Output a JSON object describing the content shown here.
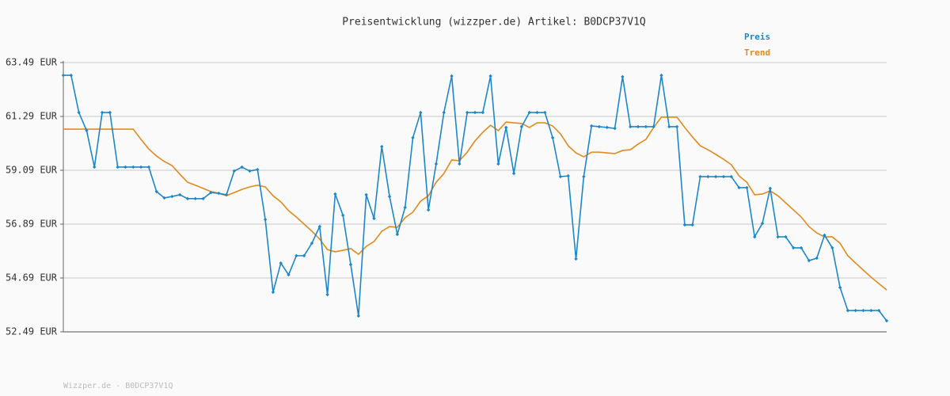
{
  "chart_data": {
    "type": "line",
    "title": "Preisentwicklung (wizzper.de) Artikel: B0DCP37V1Q",
    "watermark": "Wizzper.de - B0DCP37V1Q",
    "legend": "top-right",
    "grid": true,
    "ylim": [
      52.49,
      63.49
    ],
    "yticks": [
      {
        "value": 52.49,
        "label": "52.49 EUR"
      },
      {
        "value": 54.69,
        "label": "54.69 EUR"
      },
      {
        "value": 56.89,
        "label": "56.89 EUR"
      },
      {
        "value": 59.09,
        "label": "59.09 EUR"
      },
      {
        "value": 61.29,
        "label": "61.29 EUR"
      },
      {
        "value": 63.49,
        "label": "63.49 EUR"
      }
    ],
    "categories": [
      null,
      null,
      null,
      null,
      null,
      null,
      null,
      null,
      null,
      null,
      null,
      null,
      null,
      null,
      null,
      null,
      null,
      null,
      null,
      null,
      null,
      null,
      null,
      null,
      null,
      null,
      null,
      null,
      null,
      null,
      null,
      null,
      null,
      null,
      null,
      null,
      null,
      null,
      null,
      null,
      null,
      null,
      null,
      null,
      null,
      null,
      null,
      null,
      null,
      null,
      null,
      null,
      null,
      null,
      null,
      null,
      null,
      null,
      null,
      null,
      null,
      null,
      null,
      null,
      null,
      null,
      null,
      null,
      null,
      null,
      null,
      null,
      null,
      null,
      null,
      null,
      null,
      null,
      null,
      null,
      null,
      null,
      null,
      null,
      null,
      null,
      null,
      null,
      null,
      null,
      null,
      null,
      null,
      null,
      null,
      null,
      null,
      null,
      null,
      null,
      null,
      null,
      null,
      null,
      null,
      null,
      null
    ],
    "series": [
      {
        "name": "Preis",
        "color": "#1c87c9",
        "markers": true,
        "values": [
          62.97,
          62.97,
          61.45,
          60.71,
          59.22,
          61.45,
          61.45,
          59.22,
          59.22,
          59.22,
          59.22,
          59.22,
          58.22,
          57.96,
          58.02,
          58.09,
          57.93,
          57.93,
          57.93,
          58.18,
          58.15,
          58.09,
          59.06,
          59.22,
          59.06,
          59.12,
          57.08,
          54.11,
          55.3,
          54.82,
          55.6,
          55.6,
          56.11,
          56.79,
          54.01,
          58.12,
          57.25,
          55.24,
          53.14,
          58.09,
          57.12,
          60.06,
          58.02,
          56.47,
          57.57,
          60.42,
          61.45,
          57.47,
          59.35,
          61.45,
          62.94,
          59.35,
          61.45,
          61.45,
          61.45,
          62.94,
          59.35,
          60.84,
          58.96,
          60.87,
          61.45,
          61.45,
          61.45,
          60.42,
          58.83,
          58.86,
          55.47,
          58.83,
          60.9,
          60.87,
          60.84,
          60.8,
          62.91,
          60.87,
          60.87,
          60.87,
          60.87,
          62.97,
          60.87,
          60.87,
          56.86,
          56.86,
          58.83,
          58.83,
          58.83,
          58.83,
          58.83,
          58.38,
          58.38,
          56.37,
          56.92,
          58.35,
          56.37,
          56.37,
          55.92,
          55.92,
          55.4,
          55.5,
          56.44,
          55.92,
          54.3,
          53.36,
          53.36,
          53.36,
          53.36,
          53.36,
          52.94
        ]
      },
      {
        "name": "Trend",
        "color": "#e08a1e",
        "markers": false,
        "values": [
          60.77,
          60.77,
          60.77,
          60.77,
          60.77,
          60.77,
          60.77,
          60.77,
          60.77,
          60.77,
          60.35,
          59.96,
          59.67,
          59.45,
          59.28,
          58.93,
          58.6,
          58.48,
          58.35,
          58.22,
          58.15,
          58.05,
          58.18,
          58.31,
          58.41,
          58.48,
          58.41,
          58.05,
          57.8,
          57.44,
          57.18,
          56.89,
          56.6,
          56.28,
          55.85,
          55.76,
          55.82,
          55.89,
          55.66,
          55.98,
          56.18,
          56.6,
          56.79,
          56.76,
          57.15,
          57.38,
          57.83,
          58.05,
          58.6,
          58.96,
          59.51,
          59.48,
          59.83,
          60.29,
          60.64,
          60.93,
          60.71,
          61.06,
          61.03,
          61.0,
          60.84,
          61.03,
          61.03,
          60.9,
          60.58,
          60.09,
          59.8,
          59.64,
          59.83,
          59.83,
          59.8,
          59.77,
          59.9,
          59.93,
          60.16,
          60.35,
          60.84,
          61.26,
          61.26,
          61.26,
          60.84,
          60.45,
          60.09,
          59.93,
          59.74,
          59.54,
          59.32,
          58.86,
          58.6,
          58.09,
          58.12,
          58.25,
          58.05,
          57.76,
          57.47,
          57.18,
          56.79,
          56.53,
          56.37,
          56.37,
          56.11,
          55.6,
          55.3,
          55.01,
          54.72,
          54.46,
          54.2
        ]
      }
    ]
  }
}
